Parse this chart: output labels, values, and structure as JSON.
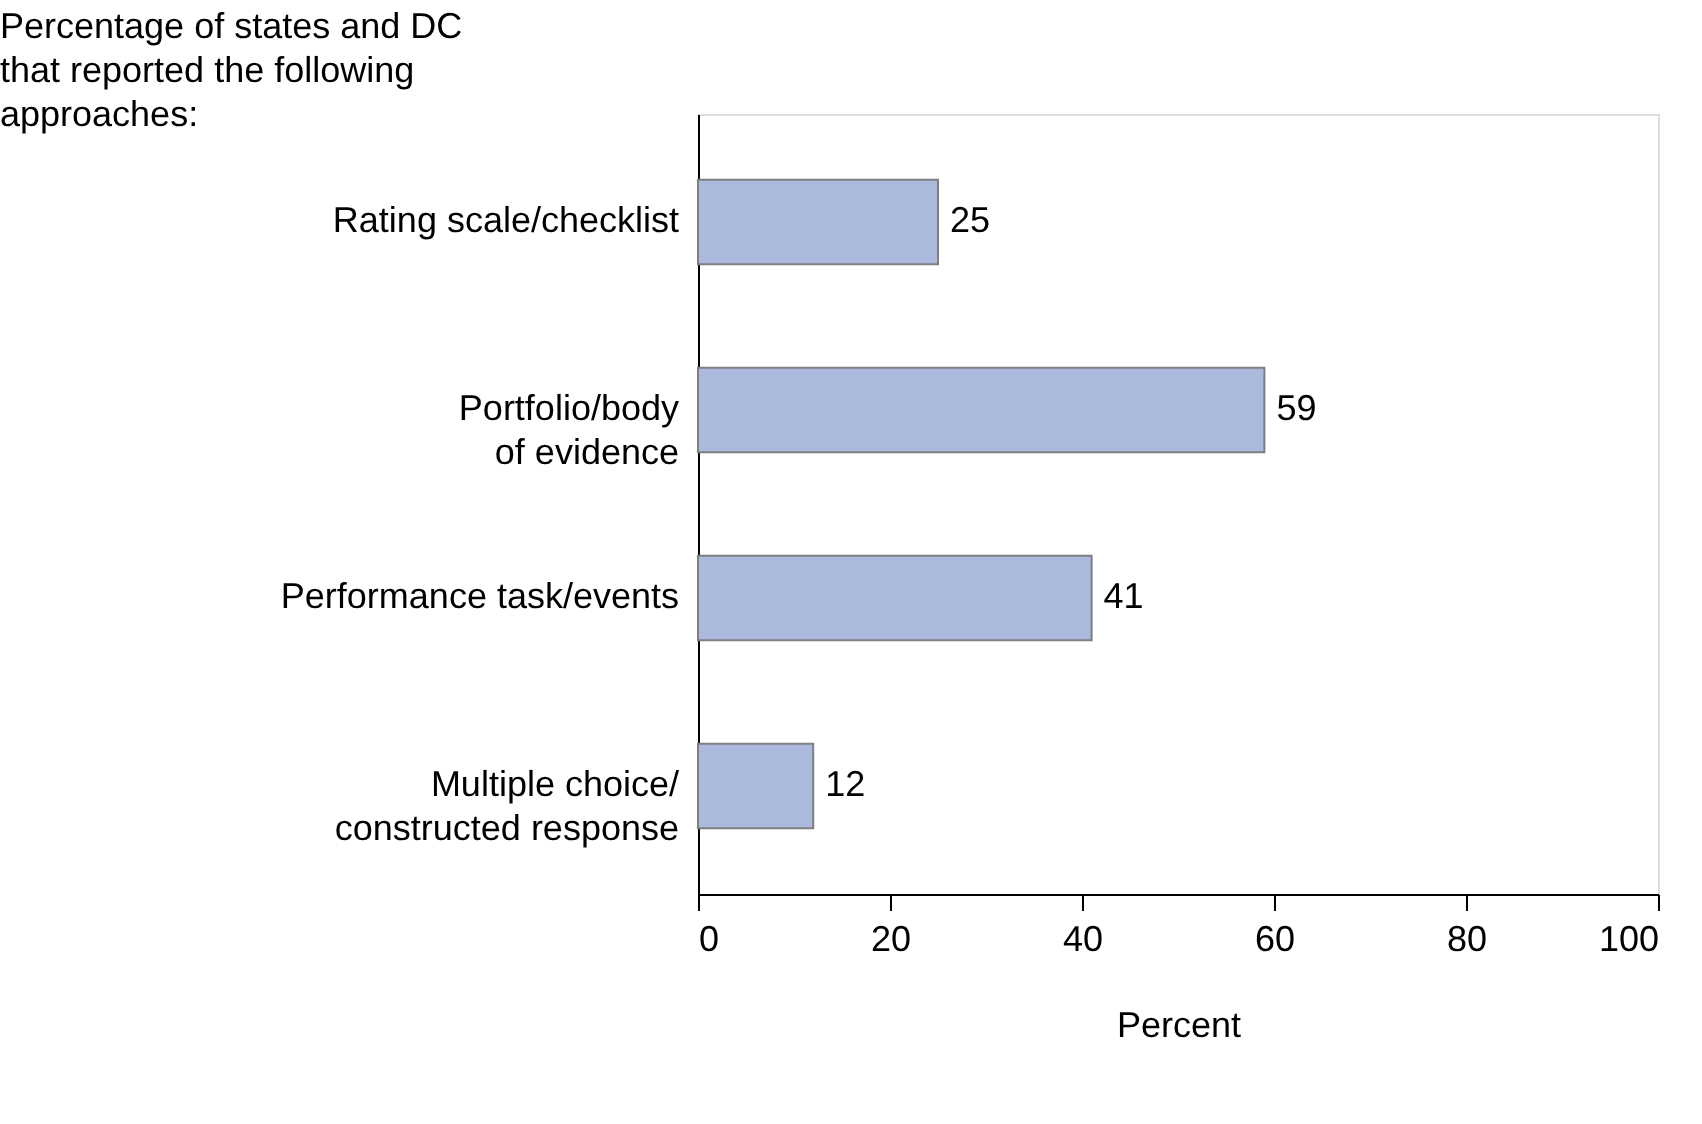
{
  "chart_data": {
    "type": "bar",
    "orientation": "horizontal",
    "title": "Percentage of states and DC that reported the following approaches:",
    "categories": [
      "Rating scale/checklist",
      "Portfolio/body\nof evidence",
      "Performance task/events",
      "Multiple choice/\nconstructed response"
    ],
    "values": [
      25,
      59,
      41,
      12
    ],
    "color": "#aab9dc",
    "xlabel": "Percent",
    "xlim": [
      0,
      100
    ],
    "xticks": [
      0,
      20,
      40,
      60,
      80,
      100
    ],
    "grid": false,
    "data_labels": true
  }
}
